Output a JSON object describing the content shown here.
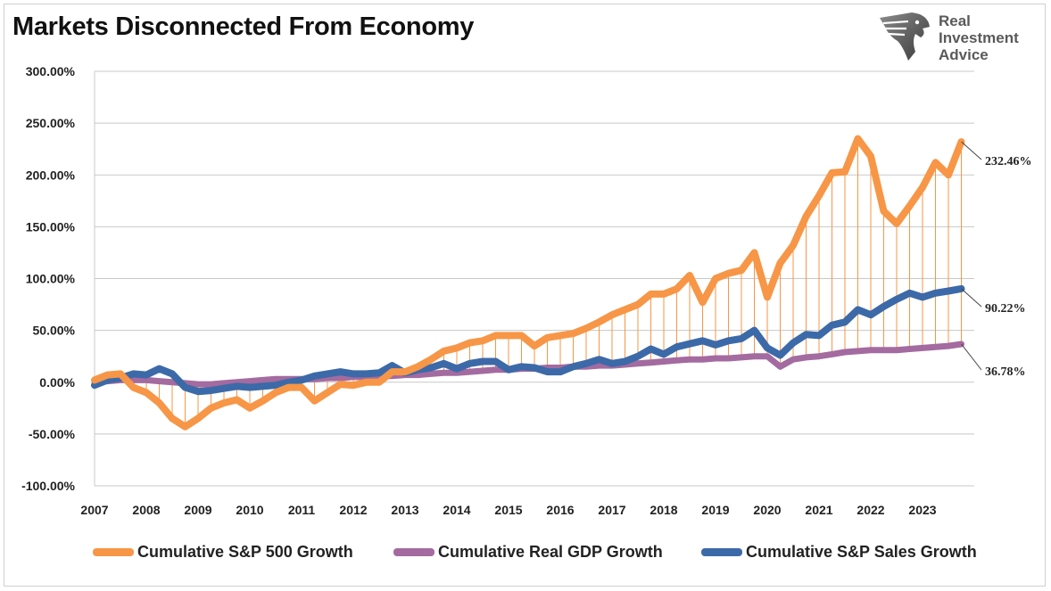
{
  "title": "Markets Disconnected From Economy",
  "logo": {
    "line1": "Real",
    "line2": "Investment",
    "line3": "Advice",
    "icon": "eagle-head-icon"
  },
  "chart_data": {
    "type": "line",
    "ylim": [
      -100,
      300
    ],
    "yticks": [
      -100,
      -50,
      0,
      50,
      100,
      150,
      200,
      250,
      300
    ],
    "ytick_labels": [
      "-100.00%",
      "-50.00%",
      "0.00%",
      "50.00%",
      "100.00%",
      "150.00%",
      "200.00%",
      "250.00%",
      "300.00%"
    ],
    "xlim": [
      2007,
      2024
    ],
    "xticks": [
      2007,
      2008,
      2009,
      2010,
      2011,
      2012,
      2013,
      2014,
      2015,
      2016,
      2017,
      2018,
      2019,
      2020,
      2021,
      2022,
      2023
    ],
    "xtick_labels": [
      "2007",
      "2008",
      "2009",
      "2010",
      "2011",
      "2012",
      "2013",
      "2014",
      "2015",
      "2016",
      "2017",
      "2018",
      "2019",
      "2020",
      "2021",
      "2022",
      "2023"
    ],
    "grid": true,
    "legend_position": "bottom",
    "series": [
      {
        "name": "Cumulative S&P 500 Growth",
        "color": "#f79646",
        "end_label": "232.46%",
        "x": [
          2007.0,
          2007.25,
          2007.5,
          2007.75,
          2008.0,
          2008.25,
          2008.5,
          2008.75,
          2009.0,
          2009.25,
          2009.5,
          2009.75,
          2010.0,
          2010.25,
          2010.5,
          2010.75,
          2011.0,
          2011.25,
          2011.5,
          2011.75,
          2012.0,
          2012.25,
          2012.5,
          2012.75,
          2013.0,
          2013.25,
          2013.5,
          2013.75,
          2014.0,
          2014.25,
          2014.5,
          2014.75,
          2015.0,
          2015.25,
          2015.5,
          2015.75,
          2016.0,
          2016.25,
          2016.5,
          2016.75,
          2017.0,
          2017.25,
          2017.5,
          2017.75,
          2018.0,
          2018.25,
          2018.5,
          2018.75,
          2019.0,
          2019.25,
          2019.5,
          2019.75,
          2020.0,
          2020.25,
          2020.5,
          2020.75,
          2021.0,
          2021.25,
          2021.5,
          2021.75,
          2022.0,
          2022.25,
          2022.5,
          2022.75,
          2023.0,
          2023.25,
          2023.5,
          2023.75
        ],
        "values": [
          2,
          7,
          8,
          -5,
          -10,
          -20,
          -35,
          -43,
          -35,
          -25,
          -20,
          -17,
          -25,
          -18,
          -10,
          -5,
          -5,
          -18,
          -10,
          -2,
          -3,
          0,
          0,
          10,
          10,
          15,
          22,
          30,
          33,
          38,
          40,
          45,
          45,
          45,
          35,
          43,
          45,
          47,
          52,
          58,
          65,
          70,
          75,
          85,
          85,
          90,
          103,
          77,
          100,
          105,
          108,
          125,
          82,
          115,
          132,
          160,
          180,
          202,
          203,
          235,
          218,
          165,
          153,
          170,
          188,
          212,
          200,
          232
        ]
      },
      {
        "name": "Cumulative Real GDP Growth",
        "color": "#a36ba0",
        "end_label": "36.78%",
        "x": [
          2007.0,
          2007.25,
          2007.5,
          2007.75,
          2008.0,
          2008.25,
          2008.5,
          2008.75,
          2009.0,
          2009.25,
          2009.5,
          2009.75,
          2010.0,
          2010.25,
          2010.5,
          2010.75,
          2011.0,
          2011.25,
          2011.5,
          2011.75,
          2012.0,
          2012.25,
          2012.5,
          2012.75,
          2013.0,
          2013.25,
          2013.5,
          2013.75,
          2014.0,
          2014.25,
          2014.5,
          2014.75,
          2015.0,
          2015.25,
          2015.5,
          2015.75,
          2016.0,
          2016.25,
          2016.5,
          2016.75,
          2017.0,
          2017.25,
          2017.5,
          2017.75,
          2018.0,
          2018.25,
          2018.5,
          2018.75,
          2019.0,
          2019.25,
          2019.5,
          2019.75,
          2020.0,
          2020.25,
          2020.5,
          2020.75,
          2021.0,
          2021.25,
          2021.5,
          2021.75,
          2022.0,
          2022.25,
          2022.5,
          2022.75,
          2023.0,
          2023.25,
          2023.5,
          2023.75
        ],
        "values": [
          0,
          1,
          2,
          2,
          2,
          1,
          0,
          -1,
          -2,
          -2,
          -1,
          0,
          1,
          2,
          3,
          3,
          3,
          3,
          4,
          4,
          5,
          5,
          6,
          6,
          7,
          7,
          8,
          9,
          9,
          10,
          11,
          12,
          12,
          13,
          13,
          14,
          14,
          15,
          15,
          16,
          16,
          17,
          18,
          19,
          20,
          21,
          22,
          22,
          23,
          23,
          24,
          25,
          25,
          15,
          22,
          24,
          25,
          27,
          29,
          30,
          31,
          31,
          31,
          32,
          33,
          34,
          35,
          36.78
        ]
      },
      {
        "name": "Cumulative S&P Sales Growth",
        "color": "#3c6aa8",
        "end_label": "90.22%",
        "x": [
          2007.0,
          2007.25,
          2007.5,
          2007.75,
          2008.0,
          2008.25,
          2008.5,
          2008.75,
          2009.0,
          2009.25,
          2009.5,
          2009.75,
          2010.0,
          2010.25,
          2010.5,
          2010.75,
          2011.0,
          2011.25,
          2011.5,
          2011.75,
          2012.0,
          2012.25,
          2012.5,
          2012.75,
          2013.0,
          2013.25,
          2013.5,
          2013.75,
          2014.0,
          2014.25,
          2014.5,
          2014.75,
          2015.0,
          2015.25,
          2015.5,
          2015.75,
          2016.0,
          2016.25,
          2016.5,
          2016.75,
          2017.0,
          2017.25,
          2017.5,
          2017.75,
          2018.0,
          2018.25,
          2018.5,
          2018.75,
          2019.0,
          2019.25,
          2019.5,
          2019.75,
          2020.0,
          2020.25,
          2020.5,
          2020.75,
          2021.0,
          2021.25,
          2021.5,
          2021.75,
          2022.0,
          2022.25,
          2022.5,
          2022.75,
          2023.0,
          2023.25,
          2023.5,
          2023.75
        ],
        "values": [
          -3,
          2,
          4,
          8,
          7,
          13,
          8,
          -5,
          -9,
          -8,
          -6,
          -4,
          -5,
          -4,
          -3,
          0,
          2,
          6,
          8,
          10,
          8,
          8,
          9,
          16,
          9,
          12,
          14,
          18,
          13,
          18,
          20,
          20,
          12,
          15,
          14,
          10,
          10,
          15,
          18,
          22,
          18,
          20,
          25,
          32,
          27,
          34,
          37,
          40,
          36,
          40,
          42,
          50,
          33,
          26,
          38,
          46,
          45,
          55,
          58,
          70,
          65,
          73,
          80,
          86,
          82,
          86,
          88,
          90.22
        ]
      }
    ]
  }
}
